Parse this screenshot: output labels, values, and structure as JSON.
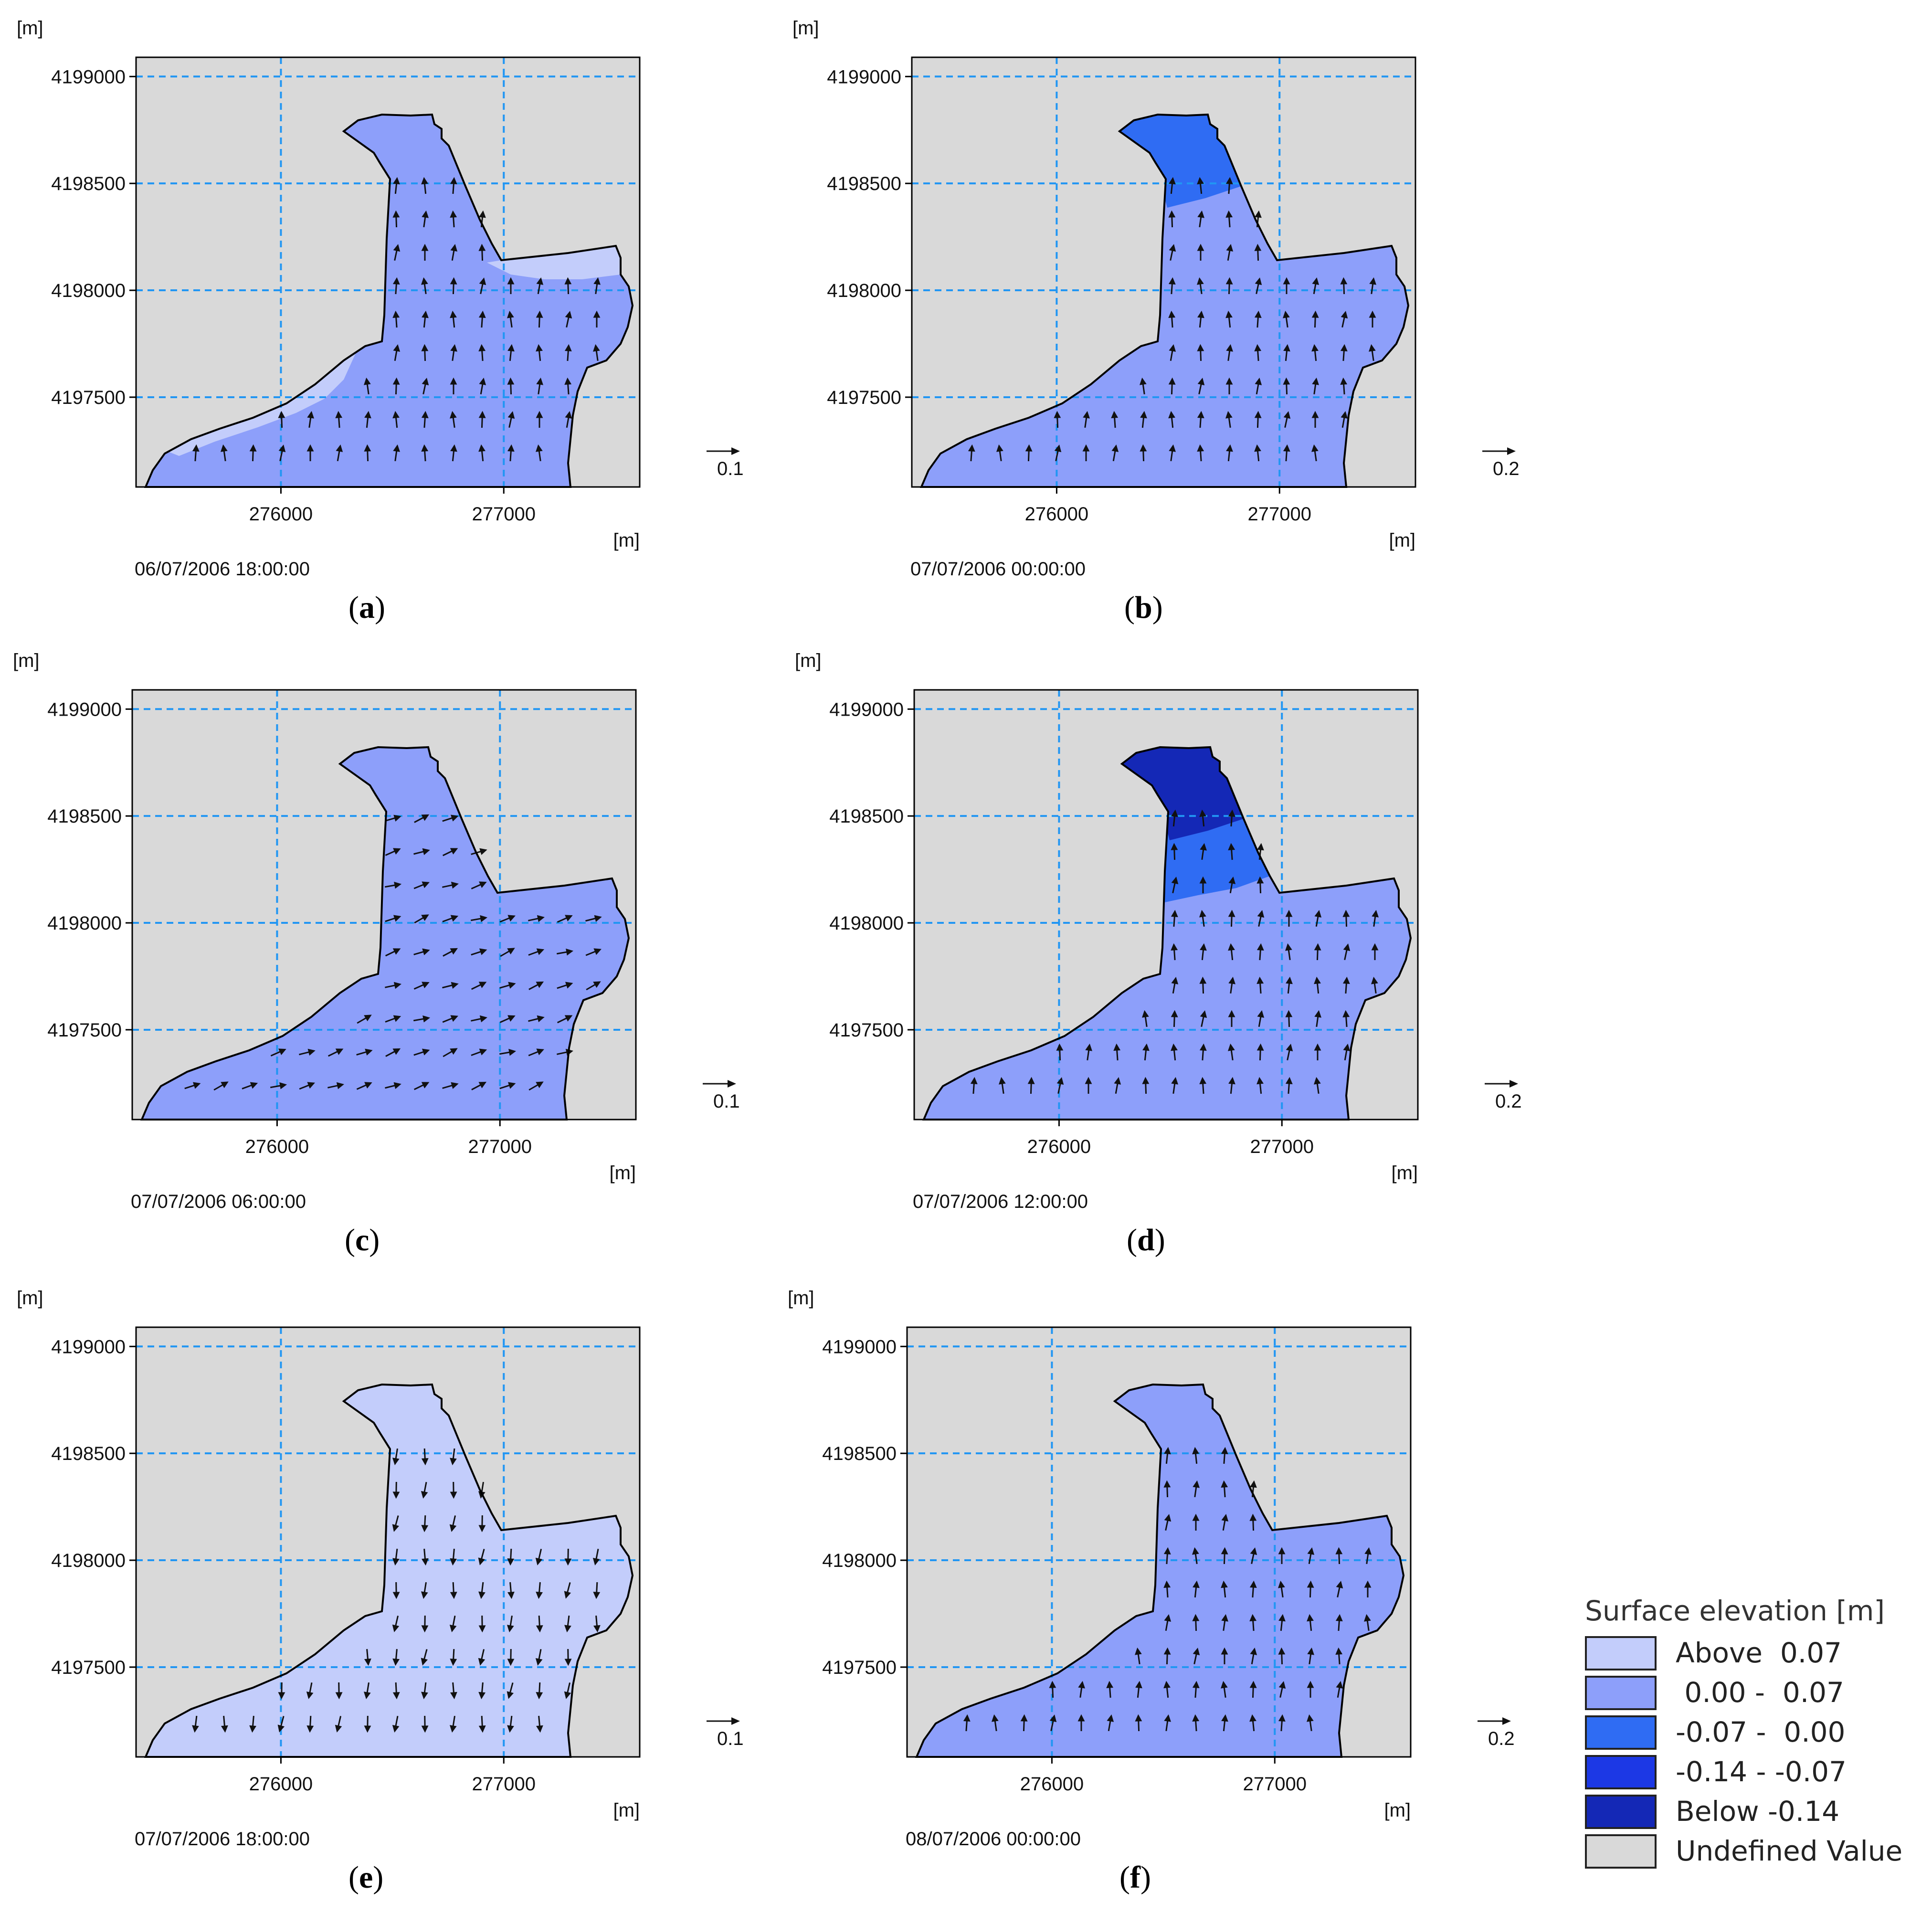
{
  "chart_data": {
    "type": "heatmap",
    "colors": {
      "above_0.07": "#c3cdfb",
      "0.00_0.07": "#8d9ffa",
      "-0.07_0.00": "#2f6cf3",
      "-0.14_-0.07": "#1c38e5",
      "below_-0.14": "#1428b6",
      "undefined": "#d9d9d9",
      "grid": "#2196f3"
    },
    "axes": {
      "xlim": [
        275350,
        277610
      ],
      "ylim": [
        4197080,
        4199090
      ],
      "x_ticks": [
        276000,
        277000
      ],
      "x_tick_labels": [
        "276000",
        "277000"
      ],
      "y_ticks": [
        4199000,
        4198500,
        4198000,
        4197500
      ],
      "y_tick_labels": [
        "4199000",
        "4198500",
        "4198000",
        "4197500"
      ],
      "xlabel": "[m]",
      "ylabel": "[m]",
      "grid": true
    },
    "panels": [
      {
        "label": "a",
        "timestamp": "06/07/2006 18:00:00",
        "scale_label": "0.1",
        "base_class": "0.00_0.07",
        "zones": [
          {
            "class": "above_0.07",
            "region": "south-west shore strip"
          },
          {
            "class": "above_0.07",
            "region": "north-east arm edge"
          }
        ],
        "flow": "north"
      },
      {
        "label": "b",
        "timestamp": "07/07/2006 00:00:00",
        "scale_label": "0.2",
        "base_class": "0.00_0.07",
        "zones": [
          {
            "class": "-0.07_0.00",
            "region": "northern head"
          }
        ],
        "flow": "north"
      },
      {
        "label": "c",
        "timestamp": "07/07/2006 06:00:00",
        "scale_label": "0.1",
        "base_class": "0.00_0.07",
        "zones": [],
        "flow": "east-north"
      },
      {
        "label": "d",
        "timestamp": "07/07/2006 12:00:00",
        "scale_label": "0.2",
        "base_class": "0.00_0.07",
        "zones": [
          {
            "class": "-0.07_0.00",
            "region": "upper neck"
          },
          {
            "class": "below_-0.14",
            "region": "northern head"
          }
        ],
        "flow": "north"
      },
      {
        "label": "e",
        "timestamp": "07/07/2006 18:00:00",
        "scale_label": "0.1",
        "base_class": "above_0.07",
        "zones": [],
        "flow": "south"
      },
      {
        "label": "f",
        "timestamp": "08/07/2006 00:00:00",
        "scale_label": "0.2",
        "base_class": "0.00_0.07",
        "zones": [],
        "flow": "north"
      }
    ],
    "legend": {
      "title": "Surface elevation [m]",
      "entries": [
        {
          "label": "Above  0.07",
          "color_key": "above_0.07"
        },
        {
          "label": " 0.00 -  0.07",
          "color_key": "0.00_0.07"
        },
        {
          "label": "-0.07 -  0.00",
          "color_key": "-0.07_0.00"
        },
        {
          "label": "-0.14 - -0.07",
          "color_key": "-0.14_-0.07"
        },
        {
          "label": "Below -0.14",
          "color_key": "below_-0.14"
        },
        {
          "label": "Undefined Value",
          "color_key": "undefined"
        }
      ]
    }
  }
}
